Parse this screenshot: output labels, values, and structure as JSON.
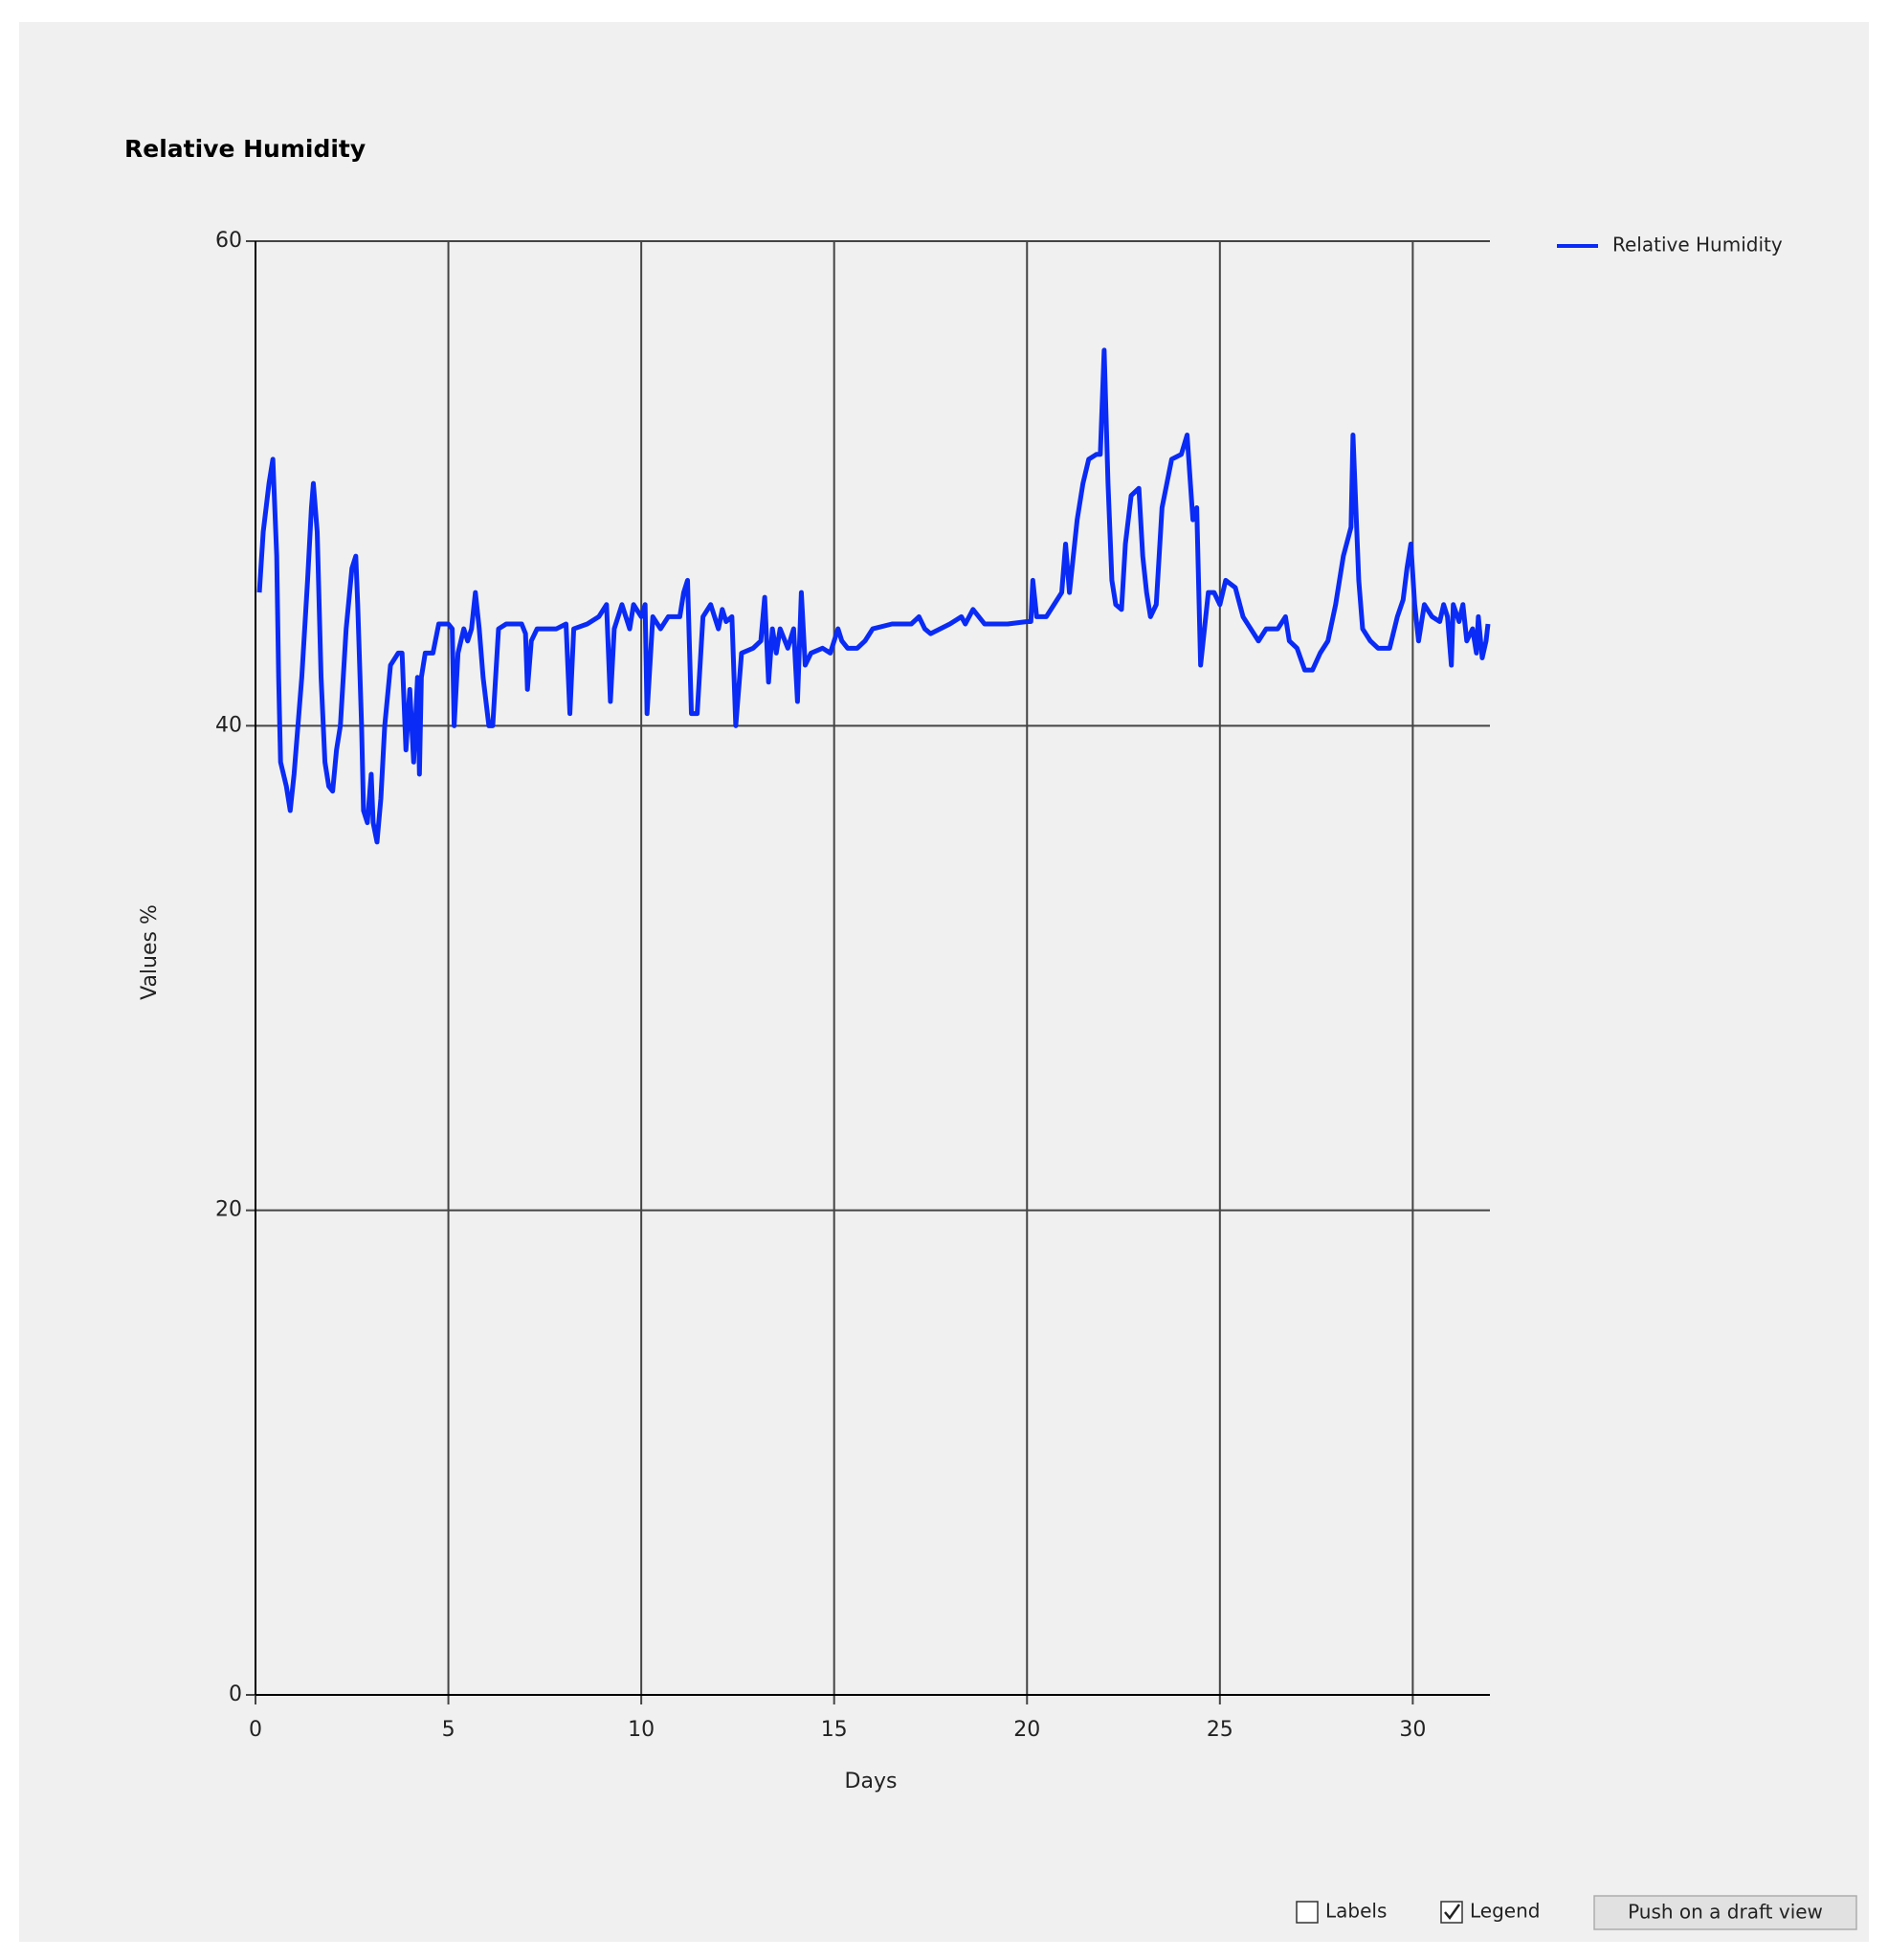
{
  "chart_data": {
    "type": "line",
    "title": "Relative Humidity",
    "xlabel": "Days",
    "ylabel": "Values %",
    "xlim": [
      0,
      32
    ],
    "ylim": [
      0,
      60
    ],
    "xticks": [
      0,
      5,
      10,
      15,
      20,
      25,
      30
    ],
    "yticks": [
      0,
      20,
      40,
      60
    ],
    "grid": true,
    "legend": "upper right outside",
    "x": [
      0.1,
      0.2,
      0.35,
      0.45,
      0.55,
      0.6,
      0.65,
      0.8,
      0.9,
      1.0,
      1.1,
      1.2,
      1.35,
      1.45,
      1.5,
      1.6,
      1.7,
      1.8,
      1.9,
      2.0,
      2.1,
      2.2,
      2.35,
      2.5,
      2.6,
      2.65,
      2.75,
      2.8,
      2.9,
      3.0,
      3.05,
      3.15,
      3.25,
      3.35,
      3.5,
      3.7,
      3.8,
      3.9,
      4.0,
      4.1,
      4.2,
      4.25,
      4.3,
      4.4,
      4.6,
      4.75,
      5.0,
      5.1,
      5.15,
      5.25,
      5.4,
      5.5,
      5.6,
      5.7,
      5.8,
      5.9,
      6.05,
      6.15,
      6.3,
      6.5,
      6.9,
      7.0,
      7.05,
      7.15,
      7.3,
      7.6,
      7.8,
      8.05,
      8.15,
      8.25,
      8.6,
      8.9,
      9.1,
      9.2,
      9.3,
      9.5,
      9.7,
      9.8,
      10.0,
      10.1,
      10.15,
      10.3,
      10.5,
      10.7,
      11.0,
      11.1,
      11.2,
      11.3,
      11.45,
      11.6,
      11.8,
      12.0,
      12.1,
      12.2,
      12.35,
      12.45,
      12.6,
      12.9,
      13.1,
      13.2,
      13.3,
      13.4,
      13.5,
      13.6,
      13.8,
      13.95,
      14.05,
      14.15,
      14.25,
      14.4,
      14.7,
      14.9,
      15.0,
      15.1,
      15.2,
      15.35,
      15.6,
      15.8,
      16.0,
      16.5,
      17.0,
      17.2,
      17.35,
      17.5,
      18.0,
      18.3,
      18.4,
      18.6,
      18.9,
      19.5,
      20.0,
      20.1,
      20.15,
      20.25,
      20.5,
      20.7,
      20.9,
      21.0,
      21.1,
      21.2,
      21.3,
      21.45,
      21.6,
      21.8,
      21.9,
      22.0,
      22.1,
      22.2,
      22.3,
      22.45,
      22.55,
      22.7,
      22.9,
      23.0,
      23.1,
      23.2,
      23.35,
      23.5,
      23.75,
      24.0,
      24.15,
      24.3,
      24.4,
      24.5,
      24.6,
      24.7,
      24.85,
      25.0,
      25.15,
      25.4,
      25.6,
      25.8,
      26.0,
      26.2,
      26.5,
      26.7,
      26.8,
      27.0,
      27.2,
      27.4,
      27.6,
      27.8,
      28.0,
      28.2,
      28.4,
      28.45,
      28.6,
      28.7,
      28.9,
      29.1,
      29.4,
      29.6,
      29.75,
      29.85,
      29.95,
      30.05,
      30.15,
      30.3,
      30.5,
      30.7,
      30.8,
      30.9,
      31.0,
      31.05,
      31.2,
      31.3,
      31.4,
      31.55,
      31.65,
      31.7,
      31.8,
      31.9,
      31.95
    ],
    "series": [
      {
        "name": "Relative Humidity",
        "color": "#0a2bf5",
        "values": [
          45.5,
          48,
          50,
          51,
          47,
          42,
          38.5,
          37.5,
          36.5,
          38,
          40,
          42,
          46,
          49,
          50,
          48,
          42,
          38.5,
          37.5,
          37.3,
          39,
          40,
          44,
          46.5,
          47,
          45,
          40,
          36.5,
          36,
          38,
          36,
          35.2,
          37,
          40,
          42.5,
          43,
          43,
          39,
          41.5,
          38.5,
          42,
          38,
          42,
          43,
          43,
          44.2,
          44.2,
          44,
          40,
          43,
          44,
          43.5,
          44,
          45.5,
          44,
          42,
          40,
          40,
          44,
          44.2,
          44.2,
          43.8,
          41.5,
          43.5,
          44,
          44,
          44,
          44.2,
          40.5,
          44,
          44.2,
          44.5,
          45,
          41,
          44,
          45,
          44,
          45,
          44.5,
          45,
          40.5,
          44.5,
          44,
          44.5,
          44.5,
          45.5,
          46,
          40.5,
          40.5,
          44.5,
          45,
          44,
          44.8,
          44.3,
          44.5,
          40,
          43,
          43.2,
          43.5,
          45.3,
          41.8,
          44,
          43,
          44,
          43.2,
          44,
          41,
          45.5,
          42.5,
          43,
          43.2,
          43,
          43.5,
          44,
          43.5,
          43.2,
          43.2,
          43.5,
          44,
          44.2,
          44.2,
          44.5,
          44,
          43.8,
          44.2,
          44.5,
          44.2,
          44.8,
          44.2,
          44.2,
          44.3,
          44.3,
          46,
          44.5,
          44.5,
          45,
          45.5,
          47.5,
          45.5,
          47,
          48.5,
          50,
          51,
          51.2,
          51.2,
          55.5,
          50,
          46,
          45,
          44.8,
          47.5,
          49.5,
          49.8,
          47,
          45.5,
          44.5,
          45,
          49,
          51,
          51.2,
          52,
          48.5,
          49,
          42.5,
          44,
          45.5,
          45.5,
          45,
          46,
          45.7,
          44.5,
          44,
          43.5,
          44,
          44,
          44.5,
          43.5,
          43.2,
          42.3,
          42.3,
          43,
          43.5,
          45,
          47,
          48.2,
          52,
          46,
          44,
          43.5,
          43.2,
          43.2,
          44.5,
          45.2,
          46.5,
          47.5,
          45,
          43.5,
          45,
          44.5,
          44.3,
          45,
          44.5,
          42.5,
          45,
          44.3,
          45,
          43.5,
          44,
          43,
          44.5,
          42.8,
          43.5,
          44.2
        ]
      }
    ]
  },
  "controls": [
    {
      "label": "Labels",
      "checked": false
    },
    {
      "label": "Legend",
      "checked": true
    }
  ],
  "button": "Push on a draft view"
}
